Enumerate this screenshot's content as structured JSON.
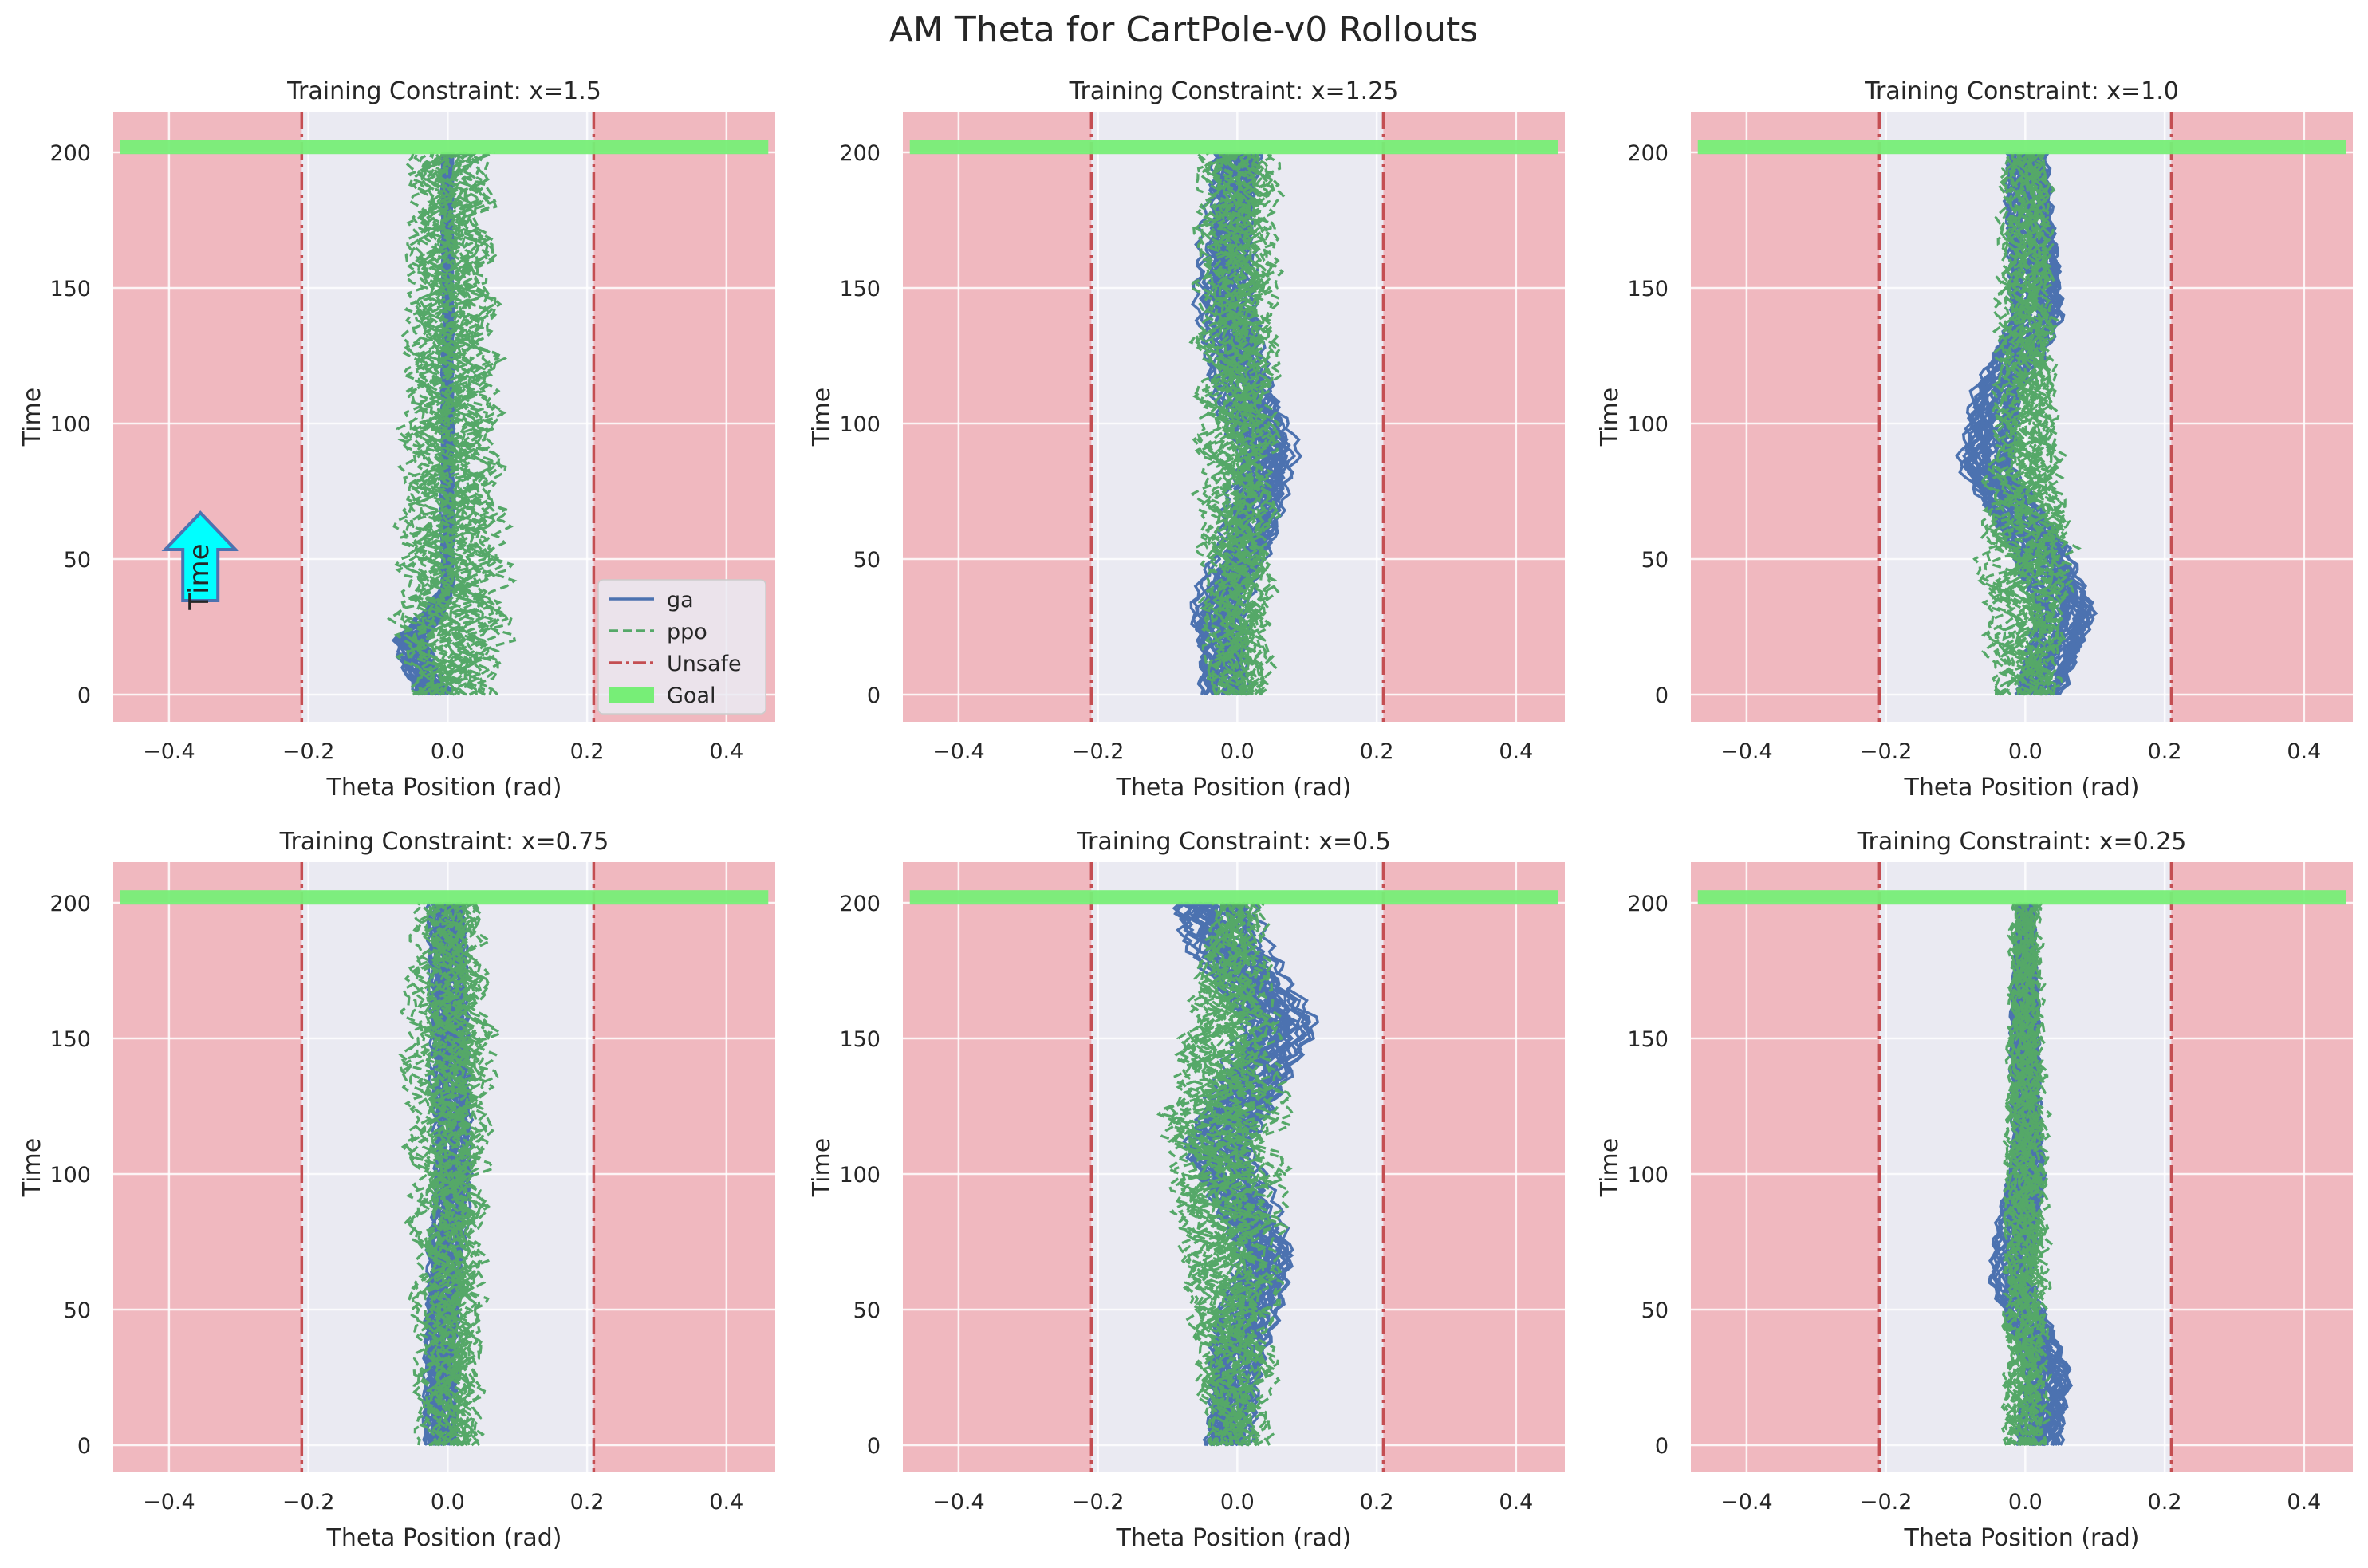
{
  "figure": {
    "title": "AM Theta for CartPole-v0 Rollouts",
    "colors": {
      "ga": "#4c72b0",
      "ppo": "#55a868",
      "unsafe_line": "#c44e52",
      "unsafe_region": "#f0b8bf",
      "safe_bg": "#eaeaf2",
      "goal": "#77ee77",
      "arrow_fill": "#00ffff",
      "arrow_edge": "#4c72b0"
    }
  },
  "chart_data": [
    {
      "type": "line",
      "title": "Training Constraint: x=1.5",
      "xlabel": "Theta Position (rad)",
      "ylabel": "Time",
      "xlim": [
        -0.48,
        0.47
      ],
      "ylim": [
        -10,
        215
      ],
      "xticks": [
        -0.4,
        -0.2,
        0.0,
        0.2,
        0.4
      ],
      "xticklabels": [
        "−0.4",
        "−0.2",
        "0.0",
        "0.2",
        "0.4"
      ],
      "yticks": [
        0,
        50,
        100,
        150,
        200
      ],
      "yticklabels": [
        "0",
        "50",
        "100",
        "150",
        "200"
      ],
      "grid": true,
      "unsafe_bounds": [
        -0.2095,
        0.2095
      ],
      "goal": {
        "time": 202,
        "x_range": [
          -0.47,
          0.46
        ]
      },
      "series": [
        {
          "name": "ga",
          "style": "solid",
          "center": [
            [
              0,
              -0.02
            ],
            [
              10,
              -0.04
            ],
            [
              20,
              -0.05
            ],
            [
              30,
              -0.02
            ],
            [
              40,
              0.0
            ],
            [
              200,
              0.0
            ]
          ],
          "spread": [
            [
              0,
              0.035
            ],
            [
              20,
              0.035
            ],
            [
              40,
              0.012
            ],
            [
              200,
              0.01
            ]
          ]
        },
        {
          "name": "ppo",
          "style": "dashed",
          "center": [
            [
              0,
              0.0
            ],
            [
              200,
              0.0
            ]
          ],
          "spread": [
            [
              0,
              0.05
            ],
            [
              20,
              0.07
            ],
            [
              100,
              0.06
            ],
            [
              200,
              0.05
            ]
          ]
        }
      ],
      "legend": {
        "placement": "lower right",
        "entries": [
          {
            "label": "ga",
            "kind": "solid"
          },
          {
            "label": "ppo",
            "kind": "dashed"
          },
          {
            "label": "Unsafe",
            "kind": "dashdot"
          },
          {
            "label": "Goal",
            "kind": "patch"
          }
        ]
      },
      "annotation": {
        "text": "Time",
        "x": -0.355,
        "y": 50
      }
    },
    {
      "type": "line",
      "title": "Training Constraint: x=1.25",
      "xlabel": "Theta Position (rad)",
      "ylabel": "Time",
      "xlim": [
        -0.48,
        0.47
      ],
      "ylim": [
        -10,
        215
      ],
      "xticks": [
        -0.4,
        -0.2,
        0.0,
        0.2,
        0.4
      ],
      "xticklabels": [
        "−0.4",
        "−0.2",
        "0.0",
        "0.2",
        "0.4"
      ],
      "yticks": [
        0,
        50,
        100,
        150,
        200
      ],
      "yticklabels": [
        "0",
        "50",
        "100",
        "150",
        "200"
      ],
      "grid": true,
      "unsafe_bounds": [
        -0.2095,
        0.2095
      ],
      "goal": {
        "time": 202,
        "x_range": [
          -0.47,
          0.46
        ]
      },
      "series": [
        {
          "name": "ga",
          "style": "solid",
          "center": [
            [
              0,
              -0.02
            ],
            [
              30,
              -0.03
            ],
            [
              60,
              0.02
            ],
            [
              90,
              0.04
            ],
            [
              120,
              0.0
            ],
            [
              150,
              -0.02
            ],
            [
              200,
              0.0
            ]
          ],
          "spread": [
            [
              0,
              0.04
            ],
            [
              100,
              0.05
            ],
            [
              200,
              0.04
            ]
          ]
        },
        {
          "name": "ppo",
          "style": "dashed",
          "center": [
            [
              0,
              0.0
            ],
            [
              200,
              0.0
            ]
          ],
          "spread": [
            [
              0,
              0.04
            ],
            [
              100,
              0.05
            ],
            [
              200,
              0.05
            ]
          ]
        }
      ]
    },
    {
      "type": "line",
      "title": "Training Constraint: x=1.0",
      "xlabel": "Theta Position (rad)",
      "ylabel": "Time",
      "xlim": [
        -0.48,
        0.47
      ],
      "ylim": [
        -10,
        215
      ],
      "xticks": [
        -0.4,
        -0.2,
        0.0,
        0.2,
        0.4
      ],
      "xticklabels": [
        "−0.4",
        "−0.2",
        "0.0",
        "0.2",
        "0.4"
      ],
      "yticks": [
        0,
        50,
        100,
        150,
        200
      ],
      "yticklabels": [
        "0",
        "50",
        "100",
        "150",
        "200"
      ],
      "grid": true,
      "unsafe_bounds": [
        -0.2095,
        0.2095
      ],
      "goal": {
        "time": 202,
        "x_range": [
          -0.47,
          0.46
        ]
      },
      "series": [
        {
          "name": "ga",
          "style": "solid",
          "center": [
            [
              0,
              0.02
            ],
            [
              30,
              0.06
            ],
            [
              55,
              0.02
            ],
            [
              85,
              -0.06
            ],
            [
              110,
              -0.04
            ],
            [
              140,
              0.02
            ],
            [
              200,
              0.0
            ]
          ],
          "spread": [
            [
              0,
              0.04
            ],
            [
              30,
              0.045
            ],
            [
              85,
              0.045
            ],
            [
              200,
              0.035
            ]
          ]
        },
        {
          "name": "ppo",
          "style": "dashed",
          "center": [
            [
              0,
              0.0
            ],
            [
              200,
              0.0
            ]
          ],
          "spread": [
            [
              0,
              0.04
            ],
            [
              50,
              0.06
            ],
            [
              100,
              0.04
            ],
            [
              200,
              0.03
            ]
          ]
        }
      ]
    },
    {
      "type": "line",
      "title": "Training Constraint: x=0.75",
      "xlabel": "Theta Position (rad)",
      "ylabel": "Time",
      "xlim": [
        -0.48,
        0.47
      ],
      "ylim": [
        -10,
        215
      ],
      "xticks": [
        -0.4,
        -0.2,
        0.0,
        0.2,
        0.4
      ],
      "xticklabels": [
        "−0.4",
        "−0.2",
        "0.0",
        "0.2",
        "0.4"
      ],
      "yticks": [
        0,
        50,
        100,
        150,
        200
      ],
      "yticklabels": [
        "0",
        "50",
        "100",
        "150",
        "200"
      ],
      "grid": true,
      "unsafe_bounds": [
        -0.2095,
        0.2095
      ],
      "goal": {
        "time": 202,
        "x_range": [
          -0.47,
          0.46
        ]
      },
      "series": [
        {
          "name": "ga",
          "style": "solid",
          "center": [
            [
              0,
              -0.01
            ],
            [
              50,
              -0.01
            ],
            [
              100,
              0.01
            ],
            [
              150,
              0.0
            ],
            [
              200,
              0.0
            ]
          ],
          "spread": [
            [
              0,
              0.025
            ],
            [
              100,
              0.03
            ],
            [
              200,
              0.03
            ]
          ]
        },
        {
          "name": "ppo",
          "style": "dashed",
          "center": [
            [
              0,
              0.0
            ],
            [
              200,
              0.0
            ]
          ],
          "spread": [
            [
              0,
              0.04
            ],
            [
              100,
              0.05
            ],
            [
              150,
              0.06
            ],
            [
              200,
              0.04
            ]
          ]
        }
      ]
    },
    {
      "type": "line",
      "title": "Training Constraint: x=0.5",
      "xlabel": "Theta Position (rad)",
      "ylabel": "Time",
      "xlim": [
        -0.48,
        0.47
      ],
      "ylim": [
        -10,
        215
      ],
      "xticks": [
        -0.4,
        -0.2,
        0.0,
        0.2,
        0.4
      ],
      "xticklabels": [
        "−0.4",
        "−0.2",
        "0.0",
        "0.2",
        "0.4"
      ],
      "yticks": [
        0,
        50,
        100,
        150,
        200
      ],
      "yticklabels": [
        "0",
        "50",
        "100",
        "150",
        "200"
      ],
      "grid": true,
      "unsafe_bounds": [
        -0.2095,
        0.2095
      ],
      "goal": {
        "time": 202,
        "x_range": [
          -0.47,
          0.46
        ]
      },
      "series": [
        {
          "name": "ga",
          "style": "solid",
          "center": [
            [
              0,
              -0.02
            ],
            [
              35,
              0.0
            ],
            [
              70,
              0.04
            ],
            [
              110,
              -0.03
            ],
            [
              155,
              0.06
            ],
            [
              185,
              -0.02
            ],
            [
              200,
              -0.04
            ]
          ],
          "spread": [
            [
              0,
              0.04
            ],
            [
              70,
              0.05
            ],
            [
              155,
              0.06
            ],
            [
              200,
              0.07
            ]
          ]
        },
        {
          "name": "ppo",
          "style": "dashed",
          "center": [
            [
              0,
              0.0
            ],
            [
              120,
              -0.02
            ],
            [
              200,
              0.0
            ]
          ],
          "spread": [
            [
              0,
              0.04
            ],
            [
              120,
              0.08
            ],
            [
              200,
              0.03
            ]
          ]
        }
      ]
    },
    {
      "type": "line",
      "title": "Training Constraint: x=0.25",
      "xlabel": "Theta Position (rad)",
      "ylabel": "Time",
      "xlim": [
        -0.48,
        0.47
      ],
      "ylim": [
        -10,
        215
      ],
      "xticks": [
        -0.4,
        -0.2,
        0.0,
        0.2,
        0.4
      ],
      "xticklabels": [
        "−0.4",
        "−0.2",
        "0.0",
        "0.2",
        "0.4"
      ],
      "yticks": [
        0,
        50,
        100,
        150,
        200
      ],
      "yticklabels": [
        "0",
        "50",
        "100",
        "150",
        "200"
      ],
      "grid": true,
      "unsafe_bounds": [
        -0.2095,
        0.2095
      ],
      "goal": {
        "time": 202,
        "x_range": [
          -0.47,
          0.46
        ]
      },
      "series": [
        {
          "name": "ga",
          "style": "solid",
          "center": [
            [
              0,
              0.02
            ],
            [
              25,
              0.03
            ],
            [
              60,
              -0.02
            ],
            [
              100,
              0.0
            ],
            [
              200,
              0.0
            ]
          ],
          "spread": [
            [
              0,
              0.035
            ],
            [
              25,
              0.04
            ],
            [
              60,
              0.035
            ],
            [
              200,
              0.015
            ]
          ]
        },
        {
          "name": "ppo",
          "style": "dashed",
          "center": [
            [
              0,
              0.0
            ],
            [
              200,
              0.0
            ]
          ],
          "spread": [
            [
              0,
              0.03
            ],
            [
              100,
              0.03
            ],
            [
              200,
              0.02
            ]
          ]
        }
      ]
    }
  ]
}
